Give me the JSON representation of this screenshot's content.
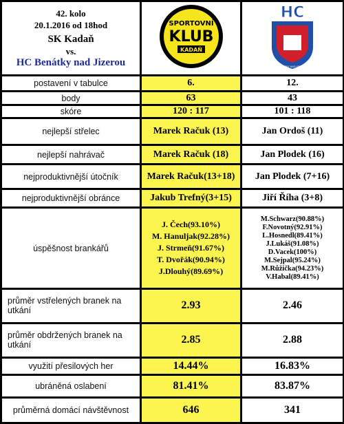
{
  "header": {
    "round": "42. kolo",
    "date": "20.1.2016 od 18hod",
    "home": "SK Kadaň",
    "vs": "vs.",
    "away": "HC Benátky nad Jizerou"
  },
  "logos": {
    "home": [
      "SPORTOVNÍ",
      "KLUB",
      "KADAŇ"
    ],
    "away": [
      "HC",
      "BENÁTKY NAD JIZEROU"
    ]
  },
  "rows": [
    [
      "postavení v tabulce",
      "6.",
      "12."
    ],
    [
      "body",
      "63",
      "43"
    ],
    [
      "skóre",
      "120 : 117",
      "101 : 118"
    ],
    [
      "nejlepší střelec",
      "Marek Račuk (13)",
      "Jan Ordoš (11)"
    ],
    [
      "nejlepší nahrávač",
      "Marek Račuk (18)",
      "Jan Plodek (16)"
    ],
    [
      "nejproduktivnější útočník",
      "Marek Račuk(13+18)",
      "Jan Plodek (7+16)"
    ],
    [
      "nejproduktivnější obránce",
      "Jakub Trefný(3+15)",
      "Jiří Říha (3+8)"
    ],
    [
      "úspěšnost brankářů",
      [
        "J. Čech(93.10%)",
        "M. Hanuljak(92.28%)",
        "J. Strmeň(91.67%)",
        "T. Dvořák(90.94%)",
        "J.Dlouhý(89.69%)"
      ],
      [
        "M.Schwarz(90.88%)",
        "F.Novotný(92.91%)",
        "L.Hosnedl(89.41%)",
        "J.Lukáš(91.08%)",
        "D.Vacek(100%)",
        "M.Sejpal(95.24%)",
        "M.Růžička(94.23%)",
        "V.Habal(89.41%)"
      ]
    ],
    [
      "průměr vstřelených branek na utkání",
      "2.93",
      "2.46"
    ],
    [
      "průměr obdržených branek na utkání",
      "2.85",
      "2.88"
    ],
    [
      "využití přesilových her",
      "14.44%",
      "16.83%"
    ],
    [
      "ubráněná oslabení",
      "81.41%",
      "83.87%"
    ],
    [
      "průměrná domácí návštěvnost",
      "646",
      "341"
    ]
  ]
}
